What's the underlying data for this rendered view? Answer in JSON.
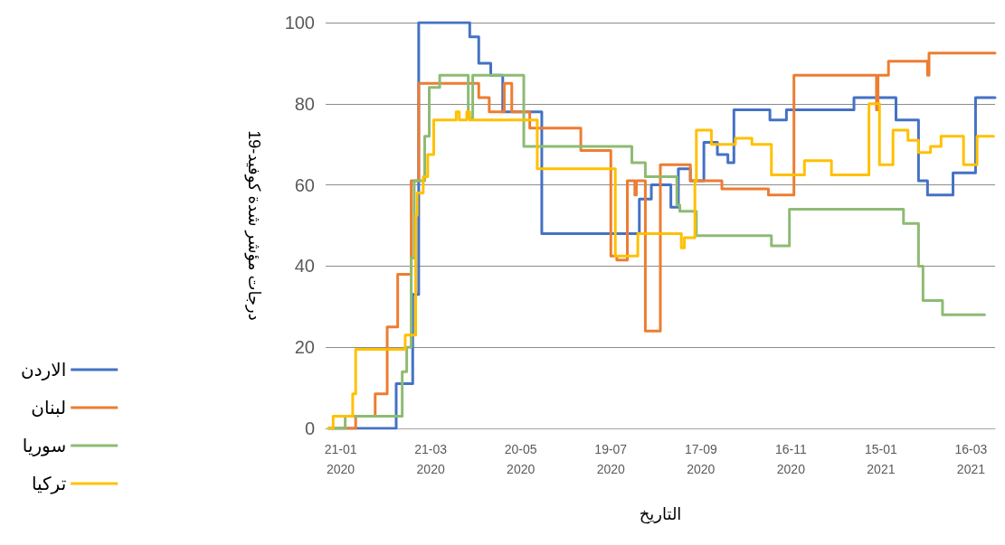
{
  "chart_data": {
    "type": "step",
    "xlabel": "التاريخ",
    "ylabel": "درجات مؤشر شدة كوفيد-19",
    "xlim": [
      "2020-01-11",
      "2021-04-01"
    ],
    "xticks": [
      {
        "value": "2020-01-21",
        "label": "21-01\n2020"
      },
      {
        "value": "2020-03-21",
        "label": "21-03\n2020"
      },
      {
        "value": "2020-05-20",
        "label": "20-05\n2020"
      },
      {
        "value": "2020-07-19",
        "label": "19-07\n2020"
      },
      {
        "value": "2020-09-17",
        "label": "17-09\n2020"
      },
      {
        "value": "2020-11-16",
        "label": "16-11\n2020"
      },
      {
        "value": "2021-01-15",
        "label": "15-01\n2021"
      },
      {
        "value": "2021-03-16",
        "label": "16-03\n2021"
      }
    ],
    "ylim": [
      0,
      100
    ],
    "yticks": [
      0,
      20,
      40,
      60,
      80,
      100
    ],
    "grid": "y",
    "legend": "bottom left",
    "marker": "none",
    "line_style": "solid",
    "series": [
      {
        "name": "الاردن",
        "color": "#4472c4",
        "x": [
          "2020-01-13",
          "2020-02-27",
          "2020-03-09",
          "2020-03-13",
          "2020-04-16",
          "2020-04-22",
          "2020-04-30",
          "2020-05-08",
          "2020-06-03",
          "2020-08-07",
          "2020-08-15",
          "2020-08-28",
          "2020-09-02",
          "2020-09-10",
          "2020-09-19",
          "2020-09-28",
          "2020-10-05",
          "2020-10-09",
          "2020-11-02",
          "2020-11-13",
          "2020-12-28",
          "2021-01-25",
          "2021-02-09",
          "2021-02-15",
          "2021-03-04",
          "2021-03-19",
          "2021-04-01"
        ],
        "values": [
          0,
          11,
          33,
          100,
          96.5,
          90,
          87,
          78,
          48,
          56.5,
          60,
          54.5,
          64,
          61,
          70.5,
          67.5,
          65.5,
          78.5,
          76,
          78.5,
          81.5,
          76,
          61,
          57.5,
          63,
          81.5,
          81.5
        ]
      },
      {
        "name": "لبنان",
        "color": "#ed7d31",
        "x": [
          "2020-01-13",
          "2020-01-31",
          "2020-02-13",
          "2020-02-21",
          "2020-02-28",
          "2020-03-08",
          "2020-03-13",
          "2020-04-22",
          "2020-04-29",
          "2020-05-09",
          "2020-05-14",
          "2020-05-26",
          "2020-06-29",
          "2020-07-19",
          "2020-07-23",
          "2020-07-30",
          "2020-08-04",
          "2020-08-05",
          "2020-08-11",
          "2020-08-21",
          "2020-09-10",
          "2020-10-01",
          "2020-11-01",
          "2020-11-18",
          "2021-01-12",
          "2021-01-13",
          "2021-01-20",
          "2021-02-15",
          "2021-02-16",
          "2021-04-01"
        ],
        "values": [
          0,
          3,
          8.5,
          25,
          38,
          61,
          85,
          81.5,
          78,
          85,
          78,
          74,
          68.5,
          42.5,
          41.5,
          61,
          57.5,
          61,
          24,
          65,
          61,
          59,
          57.5,
          87,
          78.5,
          87,
          90.5,
          87,
          92.5,
          92.5
        ]
      },
      {
        "name": "سوريا",
        "color": "#8dbb74",
        "x": [
          "2020-01-13",
          "2020-01-24",
          "2020-03-02",
          "2020-03-05",
          "2020-03-08",
          "2020-03-10",
          "2020-03-17",
          "2020-03-20",
          "2020-03-27",
          "2020-04-15",
          "2020-04-18",
          "2020-05-22",
          "2020-08-02",
          "2020-08-11",
          "2020-09-01",
          "2020-09-03",
          "2020-09-14",
          "2020-11-03",
          "2020-11-15",
          "2021-01-30",
          "2021-02-09",
          "2021-02-12",
          "2021-02-25",
          "2021-03-25"
        ],
        "values": [
          0,
          3,
          14,
          20,
          42,
          61,
          72,
          84,
          87,
          76.5,
          87,
          69.5,
          65.5,
          62,
          55,
          53.5,
          47.5,
          45,
          54,
          50.5,
          40,
          31.5,
          28,
          28
        ]
      },
      {
        "name": "تركيا",
        "color": "#ffc000",
        "x": [
          "2020-01-13",
          "2020-01-16",
          "2020-01-29",
          "2020-01-31",
          "2020-03-04",
          "2020-03-11",
          "2020-03-12",
          "2020-03-16",
          "2020-03-19",
          "2020-03-23",
          "2020-04-07",
          "2020-04-09",
          "2020-04-14",
          "2020-04-16",
          "2020-05-31",
          "2020-07-22",
          "2020-08-06",
          "2020-09-04",
          "2020-09-06",
          "2020-09-13",
          "2020-09-14",
          "2020-09-24",
          "2020-10-10",
          "2020-10-21",
          "2020-11-03",
          "2020-11-25",
          "2020-12-13",
          "2021-01-07",
          "2021-01-14",
          "2021-01-23",
          "2021-02-02",
          "2021-02-09",
          "2021-02-17",
          "2021-02-24",
          "2021-03-11",
          "2021-03-20",
          "2021-03-31"
        ],
        "values": [
          0,
          3,
          8.5,
          19.5,
          23,
          52.5,
          58,
          62,
          67.5,
          76,
          78,
          76,
          78,
          76,
          64,
          42.5,
          48,
          44.5,
          47,
          61,
          73.5,
          70,
          71.5,
          70,
          62.5,
          66,
          62.5,
          80,
          65,
          73.5,
          71,
          68,
          69.5,
          72,
          65,
          72,
          72
        ]
      }
    ]
  }
}
